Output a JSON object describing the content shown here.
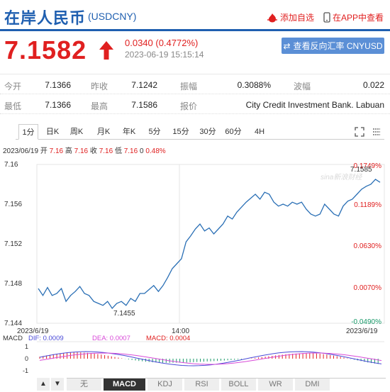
{
  "header": {
    "title": "在岸人民币",
    "code": "(USDCNY)",
    "add_label": "添加自选",
    "app_label": "在APP中查看"
  },
  "quote": {
    "price": "7.1582",
    "change": "0.0340 (0.4772%)",
    "time": "2023-06-19 15:15:14",
    "reverse_btn": "查看反向汇率 CNYUSD",
    "rows": [
      [
        {
          "label": "今开",
          "value": "7.1366"
        },
        {
          "label": "昨收",
          "value": "7.1242"
        },
        {
          "label": "振幅",
          "value": "0.3088%"
        },
        {
          "label": "波幅",
          "value": "0.022"
        }
      ],
      [
        {
          "label": "最低",
          "value": "7.1366"
        },
        {
          "label": "最高",
          "value": "7.1586"
        },
        {
          "label": "报价",
          "value": "City Credit Investment Bank. Labuan"
        }
      ]
    ]
  },
  "tabs": [
    "1分",
    "日K",
    "周K",
    "月K",
    "年K",
    "5分",
    "15分",
    "30分",
    "60分",
    "4H"
  ],
  "info": {
    "date": "2023/06/19",
    "open_label": "开",
    "open": "7.16",
    "high_label": "高",
    "high": "7.16",
    "close_label": "收",
    "close": "7.16",
    "low_label": "低",
    "low": "7.16",
    "zero": "0",
    "pct": "0.48%"
  },
  "chart_data": {
    "type": "line",
    "y_ticks": [
      "7.16",
      "7.156",
      "7.152",
      "7.148",
      "7.144"
    ],
    "y_range": [
      7.144,
      7.16
    ],
    "pct_ticks": [
      "0.1749%",
      "0.1189%",
      "0.0630%",
      "0.0070%",
      "-0.0490%"
    ],
    "x_labels": [
      "2023/6/19",
      "14:00",
      "2023/6/19"
    ],
    "high_label": "7.1585",
    "low_label": "7.1455",
    "watermark": "sina新浪财经",
    "y": [
      7.1475,
      7.1468,
      7.1476,
      7.1468,
      7.147,
      7.1475,
      7.1462,
      7.1468,
      7.1472,
      7.1477,
      7.147,
      7.1468,
      7.1462,
      7.146,
      7.1458,
      7.1462,
      7.1455,
      7.146,
      7.1462,
      7.1458,
      7.1465,
      7.1462,
      7.147,
      7.147,
      7.1474,
      7.1478,
      7.1472,
      7.1478,
      7.1486,
      7.1495,
      7.15,
      7.1505,
      7.1522,
      7.1528,
      7.1535,
      7.154,
      7.1533,
      7.1536,
      7.153,
      7.1535,
      7.154,
      7.1548,
      7.1545,
      7.1552,
      7.1557,
      7.1562,
      7.1566,
      7.157,
      7.1565,
      7.1572,
      7.157,
      7.1562,
      7.1558,
      7.156,
      7.1558,
      7.1562,
      7.156,
      7.1562,
      7.1555,
      7.155,
      7.1548,
      7.155,
      7.156,
      7.1555,
      7.155,
      7.1548,
      7.1558,
      7.1563,
      7.1565,
      7.157,
      7.1575,
      7.1578,
      7.158,
      7.1585,
      7.1582
    ]
  },
  "macd": {
    "label": "MACD",
    "dif_label": "DIF: 0.0009",
    "dea_label": "DEA: 0.0007",
    "macd_label": "MACD: 0.0004",
    "ticks": [
      "1",
      "0",
      "-1"
    ],
    "colors": {
      "dif": "#4a4ad8",
      "dea": "#d84ad8",
      "up": "#e02020",
      "down": "#1a9a6a"
    }
  },
  "indicator_tabs": [
    "无",
    "MACD",
    "KDJ",
    "RSI",
    "BOLL",
    "WR",
    "DMI"
  ],
  "nav": {
    "prev": "▲",
    "next": "▼"
  },
  "colors": {
    "accent": "#1f5fb0",
    "up": "#e02020",
    "line": "#2a6fb5",
    "button": "#5b8fd6"
  }
}
